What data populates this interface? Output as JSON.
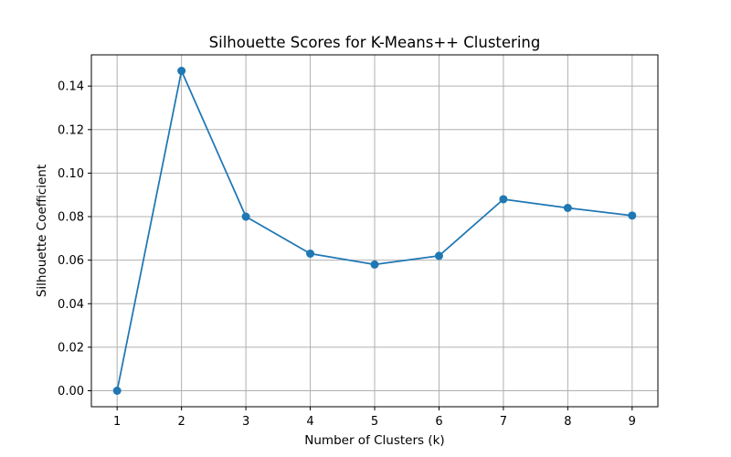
{
  "chart_data": {
    "type": "line",
    "title": "Silhouette Scores for K-Means++ Clustering",
    "xlabel": "Number of Clusters (k)",
    "ylabel": "Silhouette Coefficient",
    "x": [
      1,
      2,
      3,
      4,
      5,
      6,
      7,
      8,
      9
    ],
    "series": [
      {
        "values": [
          0.0,
          0.147,
          0.08,
          0.063,
          0.058,
          0.062,
          0.088,
          0.084,
          0.0805
        ],
        "color": "#1f77b4",
        "marker": "circle"
      }
    ],
    "xticks": [
      "1",
      "2",
      "3",
      "4",
      "5",
      "6",
      "7",
      "8",
      "9"
    ],
    "yticks": [
      "0.00",
      "0.02",
      "0.04",
      "0.06",
      "0.08",
      "0.10",
      "0.12",
      "0.14"
    ],
    "xlim": [
      0.6,
      9.4
    ],
    "ylim": [
      -0.00735,
      0.15435
    ],
    "grid": true
  }
}
